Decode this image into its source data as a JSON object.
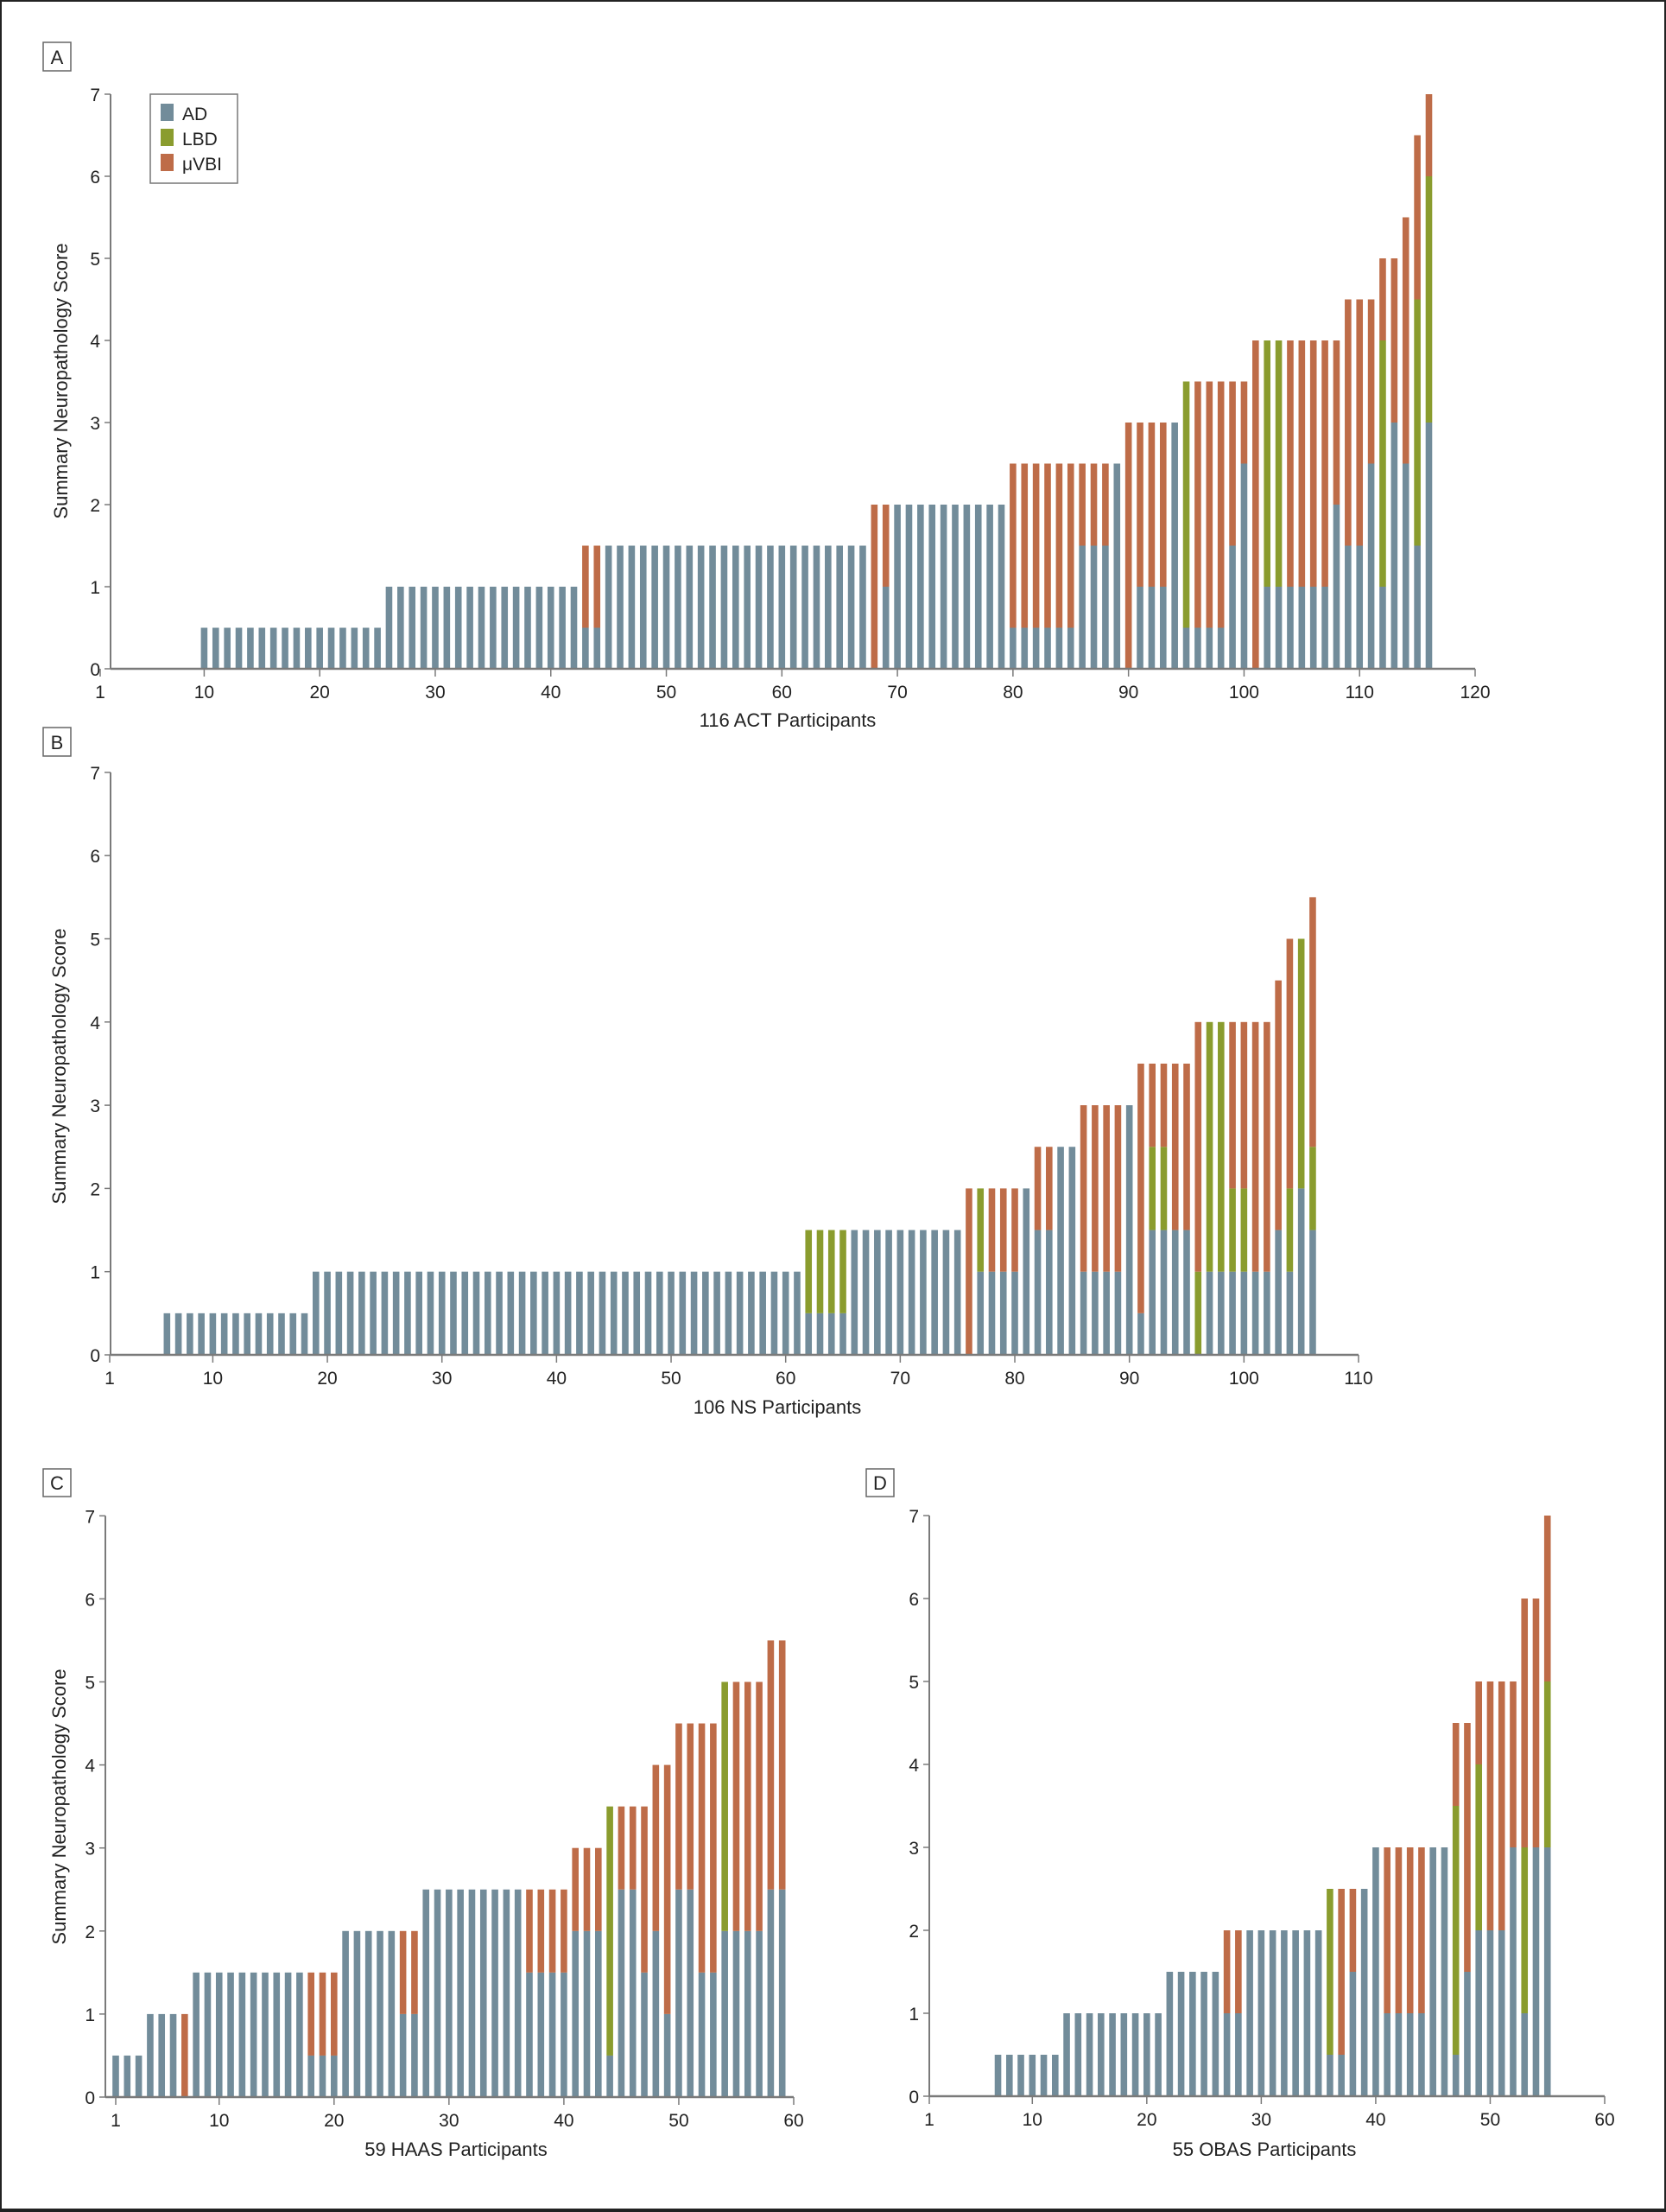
{
  "colors": {
    "AD": "#728c9a",
    "LBD": "#8a9c2e",
    "uVBI": "#be6c48",
    "axis": "#7a7a7a",
    "text": "#222222"
  },
  "legend": {
    "items": [
      {
        "key": "AD",
        "label": "AD"
      },
      {
        "key": "LBD",
        "label": "LBD"
      },
      {
        "key": "uVBI",
        "label": "μVBI"
      }
    ],
    "placement": "top-left of panel A"
  },
  "chart_data": [
    {
      "panel": "A",
      "type": "bar",
      "stacked": true,
      "title": "",
      "xlabel": "116 ACT Participants",
      "ylabel": "Summary Neuropathology Score",
      "n_participants": 116,
      "xlim": [
        1,
        120
      ],
      "ylim": [
        0,
        7
      ],
      "xticks": [
        1,
        10,
        20,
        30,
        40,
        50,
        60,
        70,
        80,
        90,
        100,
        110,
        120
      ],
      "yticks": [
        0,
        1,
        2,
        3,
        4,
        5,
        6,
        7
      ],
      "series_order": [
        "AD",
        "LBD",
        "uVBI"
      ],
      "runs_note": "each run: [count, AD, LBD, uVBI]; runs are consecutive participants starting at participant 1",
      "runs": [
        [
          9,
          0,
          0,
          0
        ],
        [
          16,
          0.5,
          0,
          0
        ],
        [
          17,
          1,
          0,
          0
        ],
        [
          2,
          0.5,
          0,
          1
        ],
        [
          23,
          1.5,
          0,
          0
        ],
        [
          1,
          0,
          0,
          2
        ],
        [
          1,
          1,
          0,
          1
        ],
        [
          10,
          2,
          0,
          0
        ],
        [
          6,
          0.5,
          0,
          2
        ],
        [
          3,
          1.5,
          0,
          1
        ],
        [
          1,
          2.5,
          0,
          0
        ],
        [
          1,
          0,
          0,
          3
        ],
        [
          3,
          1,
          0,
          2
        ],
        [
          1,
          3,
          0,
          0
        ],
        [
          1,
          0.5,
          3,
          0
        ],
        [
          3,
          0.5,
          0,
          3
        ],
        [
          1,
          1.5,
          0,
          2
        ],
        [
          1,
          2.5,
          0,
          1
        ],
        [
          1,
          0,
          0,
          4
        ],
        [
          2,
          1,
          3,
          0
        ],
        [
          4,
          1,
          0,
          3
        ],
        [
          1,
          2,
          0,
          2
        ],
        [
          2,
          1.5,
          0,
          3
        ],
        [
          1,
          2.5,
          0,
          2
        ],
        [
          1,
          1,
          3,
          1
        ],
        [
          1,
          3,
          0,
          2
        ],
        [
          1,
          2.5,
          0,
          3
        ],
        [
          1,
          1.5,
          3,
          2
        ],
        [
          1,
          3,
          3,
          1
        ]
      ]
    },
    {
      "panel": "B",
      "type": "bar",
      "stacked": true,
      "title": "",
      "xlabel": "106 NS Participants",
      "ylabel": "Summary Neuropathology Score",
      "n_participants": 106,
      "xlim": [
        1,
        110
      ],
      "ylim": [
        0,
        7
      ],
      "xticks": [
        1,
        10,
        20,
        30,
        40,
        50,
        60,
        70,
        80,
        90,
        100,
        110
      ],
      "yticks": [
        0,
        1,
        2,
        3,
        4,
        5,
        6,
        7
      ],
      "series_order": [
        "AD",
        "LBD",
        "uVBI"
      ],
      "runs": [
        [
          5,
          0,
          0,
          0
        ],
        [
          13,
          0.5,
          0,
          0
        ],
        [
          43,
          1,
          0,
          0
        ],
        [
          4,
          0.5,
          1,
          0
        ],
        [
          10,
          1.5,
          0,
          0
        ],
        [
          1,
          0,
          0,
          2
        ],
        [
          1,
          1,
          1,
          0
        ],
        [
          3,
          1,
          0,
          1
        ],
        [
          1,
          2,
          0,
          0
        ],
        [
          2,
          1.5,
          0,
          1
        ],
        [
          2,
          2.5,
          0,
          0
        ],
        [
          4,
          1,
          0,
          2
        ],
        [
          1,
          3,
          0,
          0
        ],
        [
          1,
          0.5,
          0,
          3
        ],
        [
          2,
          1.5,
          1,
          1
        ],
        [
          2,
          1.5,
          0,
          2
        ],
        [
          1,
          0,
          1,
          3
        ],
        [
          2,
          1,
          3,
          0
        ],
        [
          2,
          1,
          1,
          2
        ],
        [
          2,
          1,
          0,
          3
        ],
        [
          1,
          1.5,
          0,
          3
        ],
        [
          1,
          1,
          1,
          3
        ],
        [
          1,
          2,
          3,
          0
        ],
        [
          1,
          1.5,
          1,
          3
        ]
      ]
    },
    {
      "panel": "C",
      "type": "bar",
      "stacked": true,
      "title": "",
      "xlabel": "59 HAAS Participants",
      "ylabel": "Summary Neuropathology Score",
      "n_participants": 59,
      "xlim": [
        1,
        60
      ],
      "ylim": [
        0,
        7
      ],
      "xticks": [
        1,
        10,
        20,
        30,
        40,
        50,
        60
      ],
      "yticks": [
        0,
        1,
        2,
        3,
        4,
        5,
        6,
        7
      ],
      "series_order": [
        "AD",
        "LBD",
        "uVBI"
      ],
      "runs": [
        [
          3,
          0.5,
          0,
          0
        ],
        [
          3,
          1,
          0,
          0
        ],
        [
          1,
          0,
          0,
          1
        ],
        [
          10,
          1.5,
          0,
          0
        ],
        [
          3,
          0.5,
          0,
          1
        ],
        [
          5,
          2,
          0,
          0
        ],
        [
          2,
          1,
          0,
          1
        ],
        [
          9,
          2.5,
          0,
          0
        ],
        [
          4,
          1.5,
          0,
          1
        ],
        [
          3,
          2,
          0,
          1
        ],
        [
          1,
          0.5,
          3,
          0
        ],
        [
          2,
          2.5,
          0,
          1
        ],
        [
          1,
          1.5,
          0,
          2
        ],
        [
          1,
          2,
          0,
          2
        ],
        [
          1,
          1,
          0,
          3
        ],
        [
          2,
          2.5,
          0,
          2
        ],
        [
          2,
          1.5,
          0,
          3
        ],
        [
          1,
          2,
          3,
          0
        ],
        [
          3,
          2,
          0,
          3
        ],
        [
          2,
          2.5,
          0,
          3
        ]
      ]
    },
    {
      "panel": "D",
      "type": "bar",
      "stacked": true,
      "title": "",
      "xlabel": "55 OBAS Participants",
      "ylabel": "",
      "n_participants": 55,
      "xlim": [
        1,
        60
      ],
      "ylim": [
        0,
        7
      ],
      "xticks": [
        1,
        10,
        20,
        30,
        40,
        50,
        60
      ],
      "yticks": [
        0,
        1,
        2,
        3,
        4,
        5,
        6,
        7
      ],
      "series_order": [
        "AD",
        "LBD",
        "uVBI"
      ],
      "runs": [
        [
          6,
          0,
          0,
          0
        ],
        [
          6,
          0.5,
          0,
          0
        ],
        [
          9,
          1,
          0,
          0
        ],
        [
          5,
          1.5,
          0,
          0
        ],
        [
          2,
          1,
          0,
          1
        ],
        [
          7,
          2,
          0,
          0
        ],
        [
          1,
          0.5,
          2,
          0
        ],
        [
          1,
          0.5,
          0,
          2
        ],
        [
          1,
          1.5,
          0,
          1
        ],
        [
          1,
          2.5,
          0,
          0
        ],
        [
          1,
          3,
          0,
          0
        ],
        [
          4,
          1,
          0,
          2
        ],
        [
          2,
          3,
          0,
          0
        ],
        [
          1,
          0.5,
          3,
          1
        ],
        [
          1,
          1.5,
          0,
          3
        ],
        [
          1,
          2,
          2,
          1
        ],
        [
          2,
          2,
          0,
          3
        ],
        [
          1,
          3,
          0,
          2
        ],
        [
          1,
          1,
          2,
          3
        ],
        [
          1,
          3,
          0,
          3
        ],
        [
          1,
          3,
          2,
          2
        ]
      ]
    }
  ]
}
